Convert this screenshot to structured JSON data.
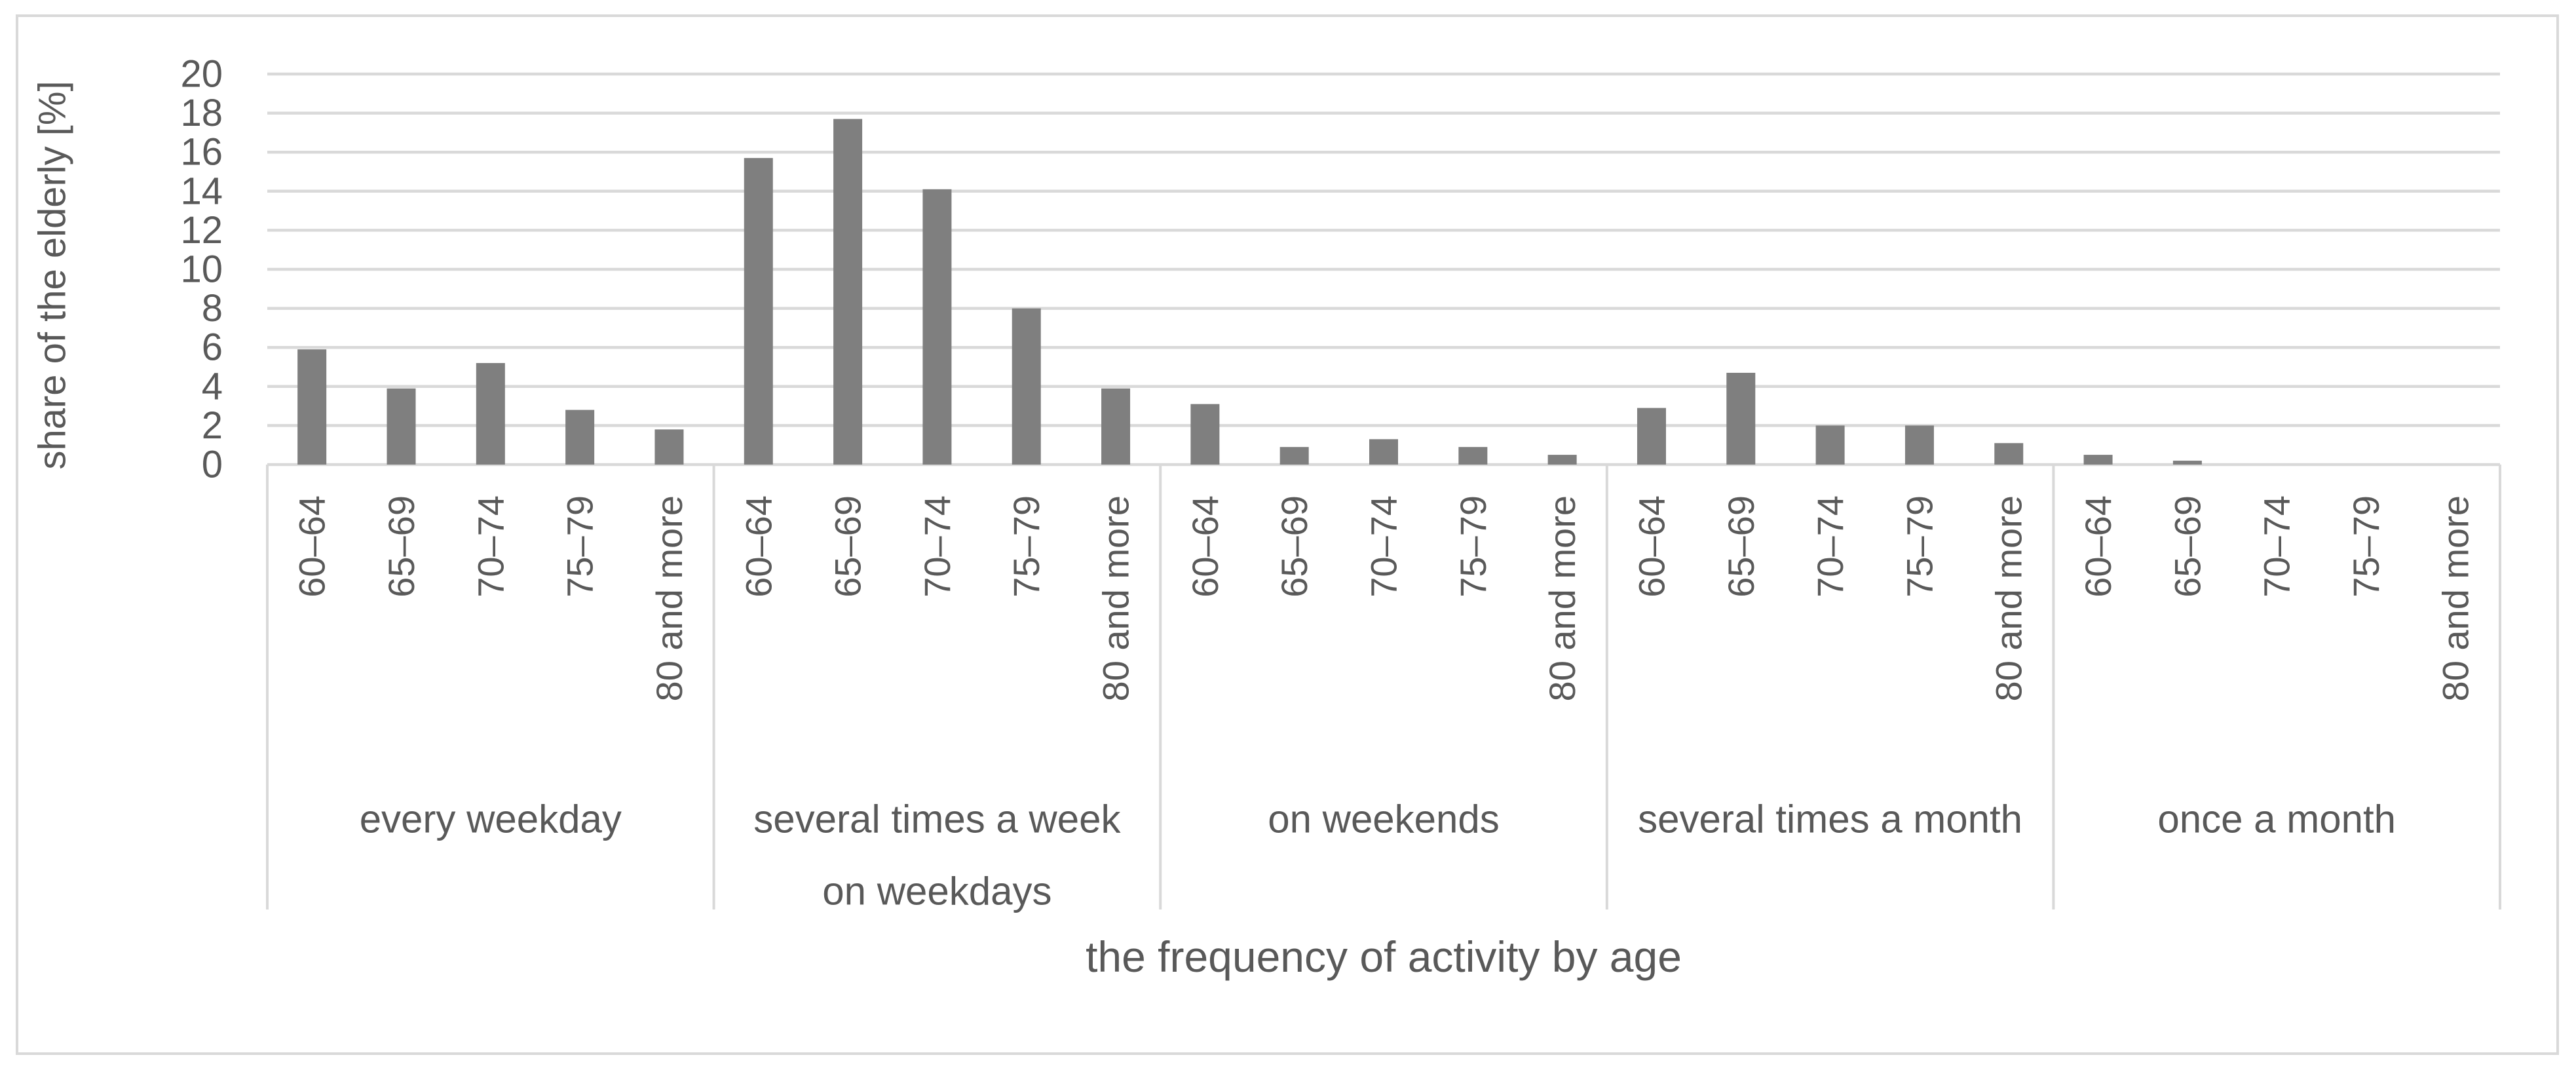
{
  "figure": {
    "background": "#ffffff",
    "border_color": "#d9d9d9"
  },
  "chart_data": {
    "type": "bar",
    "title": "",
    "ylabel": "share of the elderly [%]",
    "xlabel": "the frequency of activity by age",
    "ylim": [
      0,
      20
    ],
    "ytick_step": 2,
    "ytick_labels": [
      "0",
      "2",
      "4",
      "6",
      "8",
      "10",
      "12",
      "14",
      "16",
      "18",
      "20"
    ],
    "grid": true,
    "legend_position": "none",
    "bar_color": "#7f7f7f",
    "gridline_color": "#d9d9d9",
    "divider_color": "#d9d9d9",
    "text_color": "#595959",
    "categories": [
      "60–64",
      "65–69",
      "70–74",
      "75–79",
      "80 and more"
    ],
    "groups": [
      {
        "label": "every weekday",
        "label_lines": [
          "every weekday"
        ],
        "values": [
          5.9,
          3.9,
          5.2,
          2.8,
          1.8
        ]
      },
      {
        "label": "several times a week on weekdays",
        "label_lines": [
          "several times a week",
          "on weekdays"
        ],
        "values": [
          15.7,
          17.7,
          14.1,
          8.0,
          3.9
        ]
      },
      {
        "label": "on weekends",
        "label_lines": [
          "on weekends"
        ],
        "values": [
          3.1,
          0.9,
          1.3,
          0.9,
          0.5
        ]
      },
      {
        "label": "several times a month",
        "label_lines": [
          "several times a month"
        ],
        "values": [
          2.9,
          4.7,
          2.0,
          2.0,
          1.1
        ]
      },
      {
        "label": "once a month",
        "label_lines": [
          "once a month"
        ],
        "values": [
          0.5,
          0.2,
          0,
          0,
          0
        ]
      }
    ]
  }
}
